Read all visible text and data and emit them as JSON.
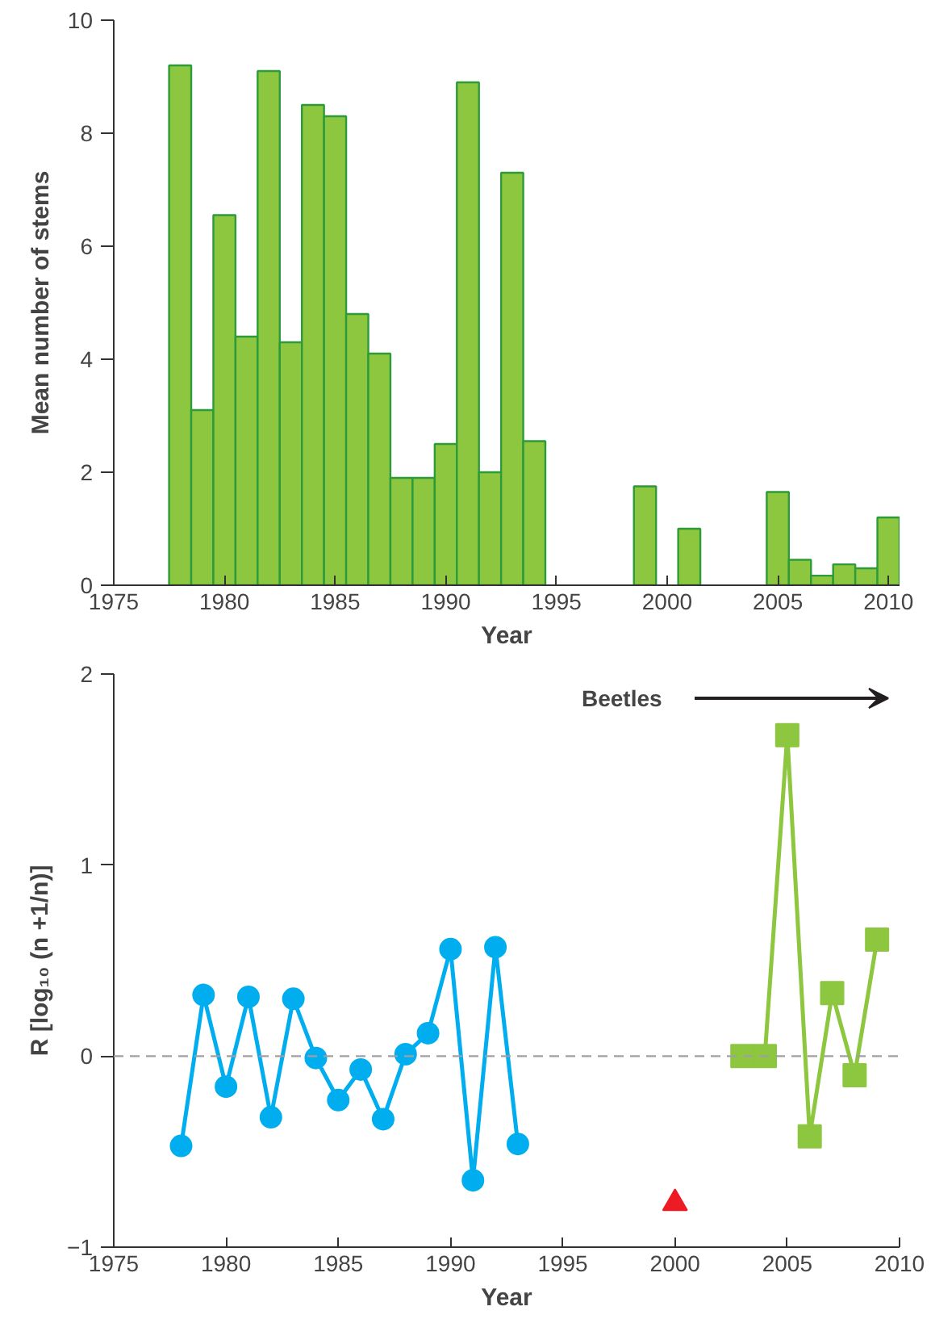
{
  "chart_data": [
    {
      "type": "bar",
      "xlabel": "Year",
      "ylabel": "Mean number of stems",
      "x": [
        1978,
        1979,
        1980,
        1981,
        1982,
        1983,
        1984,
        1985,
        1986,
        1987,
        1988,
        1989,
        1990,
        1991,
        1992,
        1993,
        1994,
        1999,
        2001,
        2005,
        2006,
        2007,
        2008,
        2009,
        2010
      ],
      "values": [
        9.2,
        3.1,
        6.55,
        4.4,
        9.1,
        4.3,
        8.5,
        8.3,
        4.8,
        4.1,
        1.9,
        1.9,
        2.5,
        8.9,
        2.0,
        7.3,
        2.55,
        1.75,
        1.0,
        1.65,
        0.45,
        0.17,
        0.37,
        0.3,
        1.2
      ],
      "color": "#8dc63f",
      "xlim": [
        1975,
        2010.5
      ],
      "xticks": [
        1975,
        1980,
        1985,
        1990,
        1995,
        2000,
        2005,
        2010
      ],
      "ylim": [
        0,
        10
      ],
      "yticks": [
        0,
        2,
        4,
        6,
        8,
        10
      ],
      "grid": false
    },
    {
      "type": "line",
      "xlabel": "Year",
      "ylabel": "R [log₁₀ (n +1/n)]",
      "series": [
        {
          "color": "#00aeef",
          "marker": "circle",
          "x": [
            1978,
            1979,
            1980,
            1981,
            1982,
            1983,
            1984,
            1985,
            1986,
            1987,
            1988,
            1989,
            1990,
            1991,
            1992,
            1993
          ],
          "values": [
            -0.47,
            0.32,
            -0.16,
            0.31,
            -0.32,
            0.3,
            -0.01,
            -0.23,
            -0.07,
            -0.33,
            0.01,
            0.12,
            0.56,
            -0.65,
            0.57,
            -0.46
          ]
        },
        {
          "color": "#8dc63f",
          "marker": "square",
          "x": [
            2003,
            2004,
            2005,
            2006,
            2007,
            2008,
            2009
          ],
          "values": [
            0.0,
            0.0,
            1.68,
            -0.42,
            0.33,
            -0.1,
            0.61
          ]
        },
        {
          "type": "scatter",
          "color": "#ed1c24",
          "marker": "triangle",
          "x": [
            2000
          ],
          "values": [
            -0.77
          ]
        }
      ],
      "ref_lines": [
        {
          "axis": "y",
          "value": 0,
          "color": "#a0a0a0",
          "line_style": "dashed"
        }
      ],
      "annotations": [
        "Beetles"
      ],
      "xlim": [
        1975,
        2010
      ],
      "xticks": [
        1975,
        1980,
        1985,
        1990,
        1995,
        2000,
        2005,
        2010
      ],
      "ylim": [
        -1,
        2
      ],
      "yticks": [
        {
          "value": -1,
          "label": "−1"
        },
        0,
        1,
        2
      ],
      "grid": false
    }
  ]
}
